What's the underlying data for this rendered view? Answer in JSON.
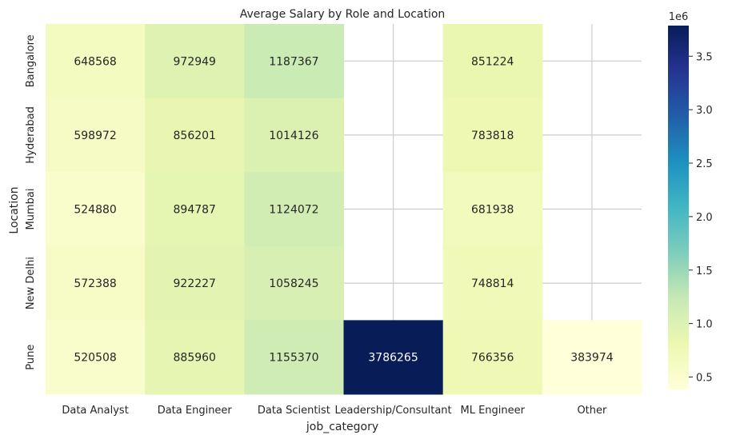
{
  "chart_data": {
    "type": "heatmap",
    "title": "Average Salary by Role and Location",
    "xlabel": "job_category",
    "ylabel": "Location",
    "x_categories": [
      "Data Analyst",
      "Data Engineer",
      "Data Scientist",
      "Leadership/Consultant",
      "ML Engineer",
      "Other"
    ],
    "y_categories": [
      "Bangalore",
      "Hyderabad",
      "Mumbai",
      "New Delhi",
      "Pune"
    ],
    "values": [
      [
        648568,
        972949,
        1187367,
        null,
        851224,
        null
      ],
      [
        598972,
        856201,
        1014126,
        null,
        783818,
        null
      ],
      [
        524880,
        894787,
        1124072,
        null,
        681938,
        null
      ],
      [
        572388,
        922227,
        1058245,
        null,
        748814,
        null
      ],
      [
        520508,
        885960,
        1155370,
        3786265,
        766356,
        383974
      ]
    ],
    "colormap": "YlGnBu",
    "vmin": 383974,
    "vmax": 3786265,
    "colorbar": {
      "ticks": [
        0.5,
        1.0,
        1.5,
        2.0,
        2.5,
        3.0,
        3.5
      ],
      "tick_labels": [
        "0.5",
        "1.0",
        "1.5",
        "2.0",
        "2.5",
        "3.0",
        "3.5"
      ],
      "exponent_label": "1e6"
    },
    "grid": true,
    "missing_cells": "blank"
  }
}
